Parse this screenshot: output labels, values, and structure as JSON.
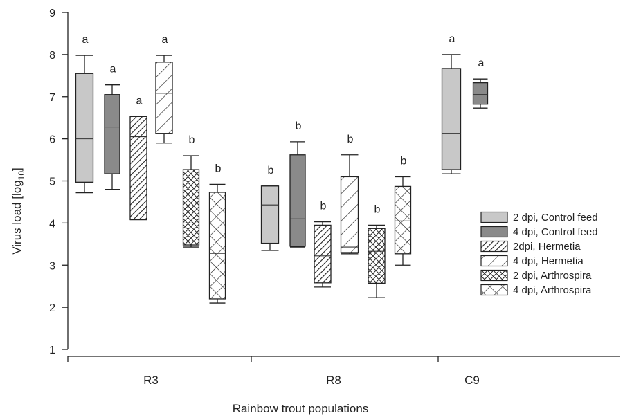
{
  "chart_data": {
    "type": "box",
    "ylabel": "Virus load [log",
    "ylabel_subscript": "10",
    "ylabel_suffix": "]",
    "xlabel": "Rainbow trout populations",
    "ylim": [
      1,
      9
    ],
    "yticks": [
      1,
      2,
      3,
      4,
      5,
      6,
      7,
      8,
      9
    ],
    "categories": [
      "R3",
      "R8",
      "C9"
    ],
    "legend_position": "right",
    "series": [
      {
        "name": "2 dpi, Control feed",
        "fill": "#c8c8c8",
        "pattern": "solid"
      },
      {
        "name": "4 dpi, Control feed",
        "fill": "#8a8a8a",
        "pattern": "solid"
      },
      {
        "name": "2dpi, Hermetia",
        "fill": "#ffffff",
        "pattern": "dense-diagonal"
      },
      {
        "name": "4 dpi, Hermetia",
        "fill": "#ffffff",
        "pattern": "sparse-diagonal"
      },
      {
        "name": "2 dpi, Arthrospira",
        "fill": "#ffffff",
        "pattern": "dense-crosshatch"
      },
      {
        "name": "4 dpi, Arthrospira",
        "fill": "#ffffff",
        "pattern": "sparse-crosshatch"
      }
    ],
    "boxes": [
      {
        "category": "R3",
        "series": 0,
        "min": 4.72,
        "q1": 4.97,
        "median": 6.0,
        "q3": 7.55,
        "max": 7.98,
        "sig": "a"
      },
      {
        "category": "R3",
        "series": 1,
        "min": 4.8,
        "q1": 5.17,
        "median": 6.28,
        "q3": 7.05,
        "max": 7.28,
        "sig": "a"
      },
      {
        "category": "R3",
        "series": 2,
        "min": 4.08,
        "q1": 4.08,
        "median": 6.05,
        "q3": 6.53,
        "max": 6.53,
        "sig": "a"
      },
      {
        "category": "R3",
        "series": 3,
        "min": 5.9,
        "q1": 6.13,
        "median": 7.08,
        "q3": 7.82,
        "max": 7.98,
        "sig": "a"
      },
      {
        "category": "R3",
        "series": 4,
        "min": 3.43,
        "q1": 3.48,
        "median": 4.0,
        "q3": 5.27,
        "max": 5.6,
        "sig": "b"
      },
      {
        "category": "R3",
        "series": 5,
        "min": 2.1,
        "q1": 2.2,
        "median": 3.28,
        "q3": 4.73,
        "max": 4.92,
        "sig": "b"
      },
      {
        "category": "R8",
        "series": 0,
        "min": 3.35,
        "q1": 3.52,
        "median": 4.43,
        "q3": 4.88,
        "max": 4.88,
        "sig": "b"
      },
      {
        "category": "R8",
        "series": 1,
        "min": 3.43,
        "q1": 3.45,
        "median": 4.1,
        "q3": 5.62,
        "max": 5.93,
        "sig": "b"
      },
      {
        "category": "R8",
        "series": 2,
        "min": 2.48,
        "q1": 2.58,
        "median": 3.22,
        "q3": 3.95,
        "max": 4.03,
        "sig": "b"
      },
      {
        "category": "R8",
        "series": 3,
        "min": 3.27,
        "q1": 3.3,
        "median": 3.43,
        "q3": 5.1,
        "max": 5.62,
        "sig": "b"
      },
      {
        "category": "R8",
        "series": 4,
        "min": 2.23,
        "q1": 2.57,
        "median": 3.33,
        "q3": 3.87,
        "max": 3.95,
        "sig": "b"
      },
      {
        "category": "R8",
        "series": 5,
        "min": 3.0,
        "q1": 3.27,
        "median": 4.05,
        "q3": 4.87,
        "max": 5.1,
        "sig": "b"
      },
      {
        "category": "C9",
        "series": 0,
        "min": 5.17,
        "q1": 5.27,
        "median": 6.13,
        "q3": 7.67,
        "max": 8.0,
        "sig": "a"
      },
      {
        "category": "C9",
        "series": 1,
        "min": 6.73,
        "q1": 6.82,
        "median": 7.05,
        "q3": 7.33,
        "max": 7.42,
        "sig": "a"
      }
    ]
  }
}
